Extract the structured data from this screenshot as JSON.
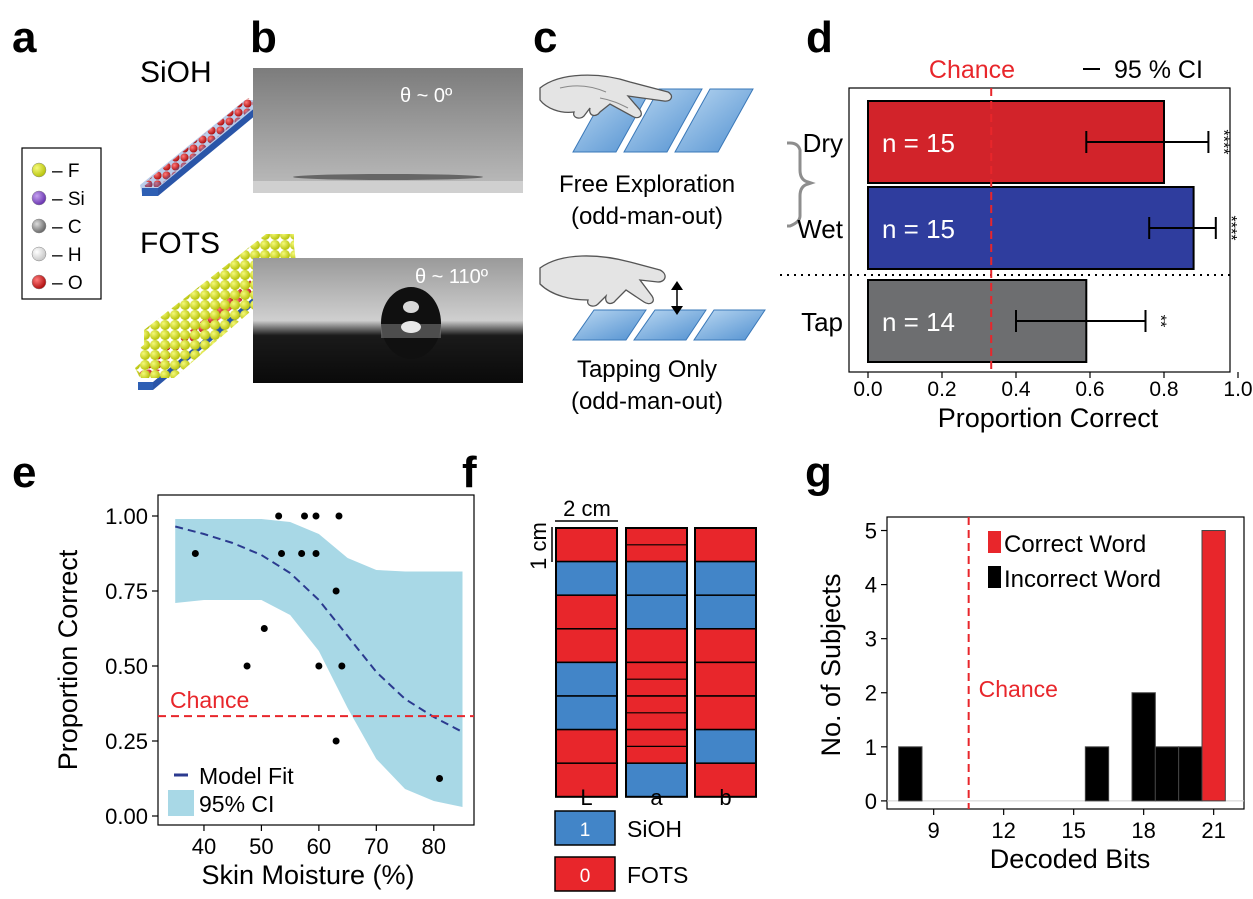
{
  "panels": {
    "a": "a",
    "b": "b",
    "c": "c",
    "d": "d",
    "e": "e",
    "f": "f",
    "g": "g"
  },
  "panel_a": {
    "top_label": "SiOH",
    "bottom_label": "FOTS",
    "legend": [
      {
        "label": "– F",
        "color": "#d8e21a"
      },
      {
        "label": "– Si",
        "color": "#8a55c8"
      },
      {
        "label": "– C",
        "color": "#9a9a9a"
      },
      {
        "label": "– H",
        "color": "#f2f2f2"
      },
      {
        "label": "– O",
        "color": "#e02020"
      }
    ]
  },
  "panel_b": {
    "top_angle": "θ ~ 0º",
    "bottom_angle": "θ ~ 110º"
  },
  "panel_c": {
    "free_line1": "Free Exploration",
    "free_line2": "(odd-man-out)",
    "tap_line1": "Tapping Only",
    "tap_line2": "(odd-man-out)"
  },
  "colors": {
    "red": "#e8262b",
    "blue": "#4285c8",
    "fill_red": "#d2232a",
    "fill_blue": "#2f3d9e",
    "fill_gray": "#6d6e70",
    "ci_fill": "#a8d8e6",
    "model": "#2b3a8f"
  },
  "chart_data": [
    {
      "id": "d",
      "type": "bar",
      "orientation": "horizontal",
      "categories": [
        "Dry",
        "Wet",
        "Tap"
      ],
      "values": [
        0.8,
        0.88,
        0.59
      ],
      "ci": [
        [
          0.59,
          0.92
        ],
        [
          0.76,
          0.94
        ],
        [
          0.4,
          0.75
        ]
      ],
      "bar_labels": [
        "n = 15",
        "n = 15",
        "n = 14"
      ],
      "significance": [
        "****",
        "****",
        "**"
      ],
      "xlabel": "Proportion Correct",
      "xlim": [
        0,
        1
      ],
      "xticks": [
        "0.0",
        "0.2",
        "0.4",
        "0.6",
        "0.8",
        "1.0"
      ],
      "chance_value": 0.333,
      "chance_label": "Chance",
      "legend": "95 % CI"
    },
    {
      "id": "e",
      "type": "scatter",
      "xlabel": "Skin Moisture (%)",
      "ylabel": "Proportion Correct",
      "xlim": [
        32,
        87
      ],
      "ylim": [
        -0.03,
        1.07
      ],
      "xticks": [
        "40",
        "50",
        "60",
        "70",
        "80"
      ],
      "yticks": [
        "0.00",
        "0.25",
        "0.50",
        "0.75",
        "1.00"
      ],
      "points": [
        [
          38.5,
          0.875
        ],
        [
          47.5,
          0.5
        ],
        [
          50.5,
          0.625
        ],
        [
          53,
          1.0
        ],
        [
          53.5,
          0.875
        ],
        [
          57,
          0.875
        ],
        [
          57.5,
          1.0
        ],
        [
          59.5,
          0.875
        ],
        [
          59.5,
          1.0
        ],
        [
          60,
          0.5
        ],
        [
          63,
          0.75
        ],
        [
          63,
          0.25
        ],
        [
          63.5,
          1.0
        ],
        [
          64,
          0.5
        ],
        [
          81,
          0.125
        ]
      ],
      "model_fit": [
        [
          35,
          0.965
        ],
        [
          40,
          0.94
        ],
        [
          45,
          0.91
        ],
        [
          50,
          0.87
        ],
        [
          55,
          0.81
        ],
        [
          60,
          0.72
        ],
        [
          65,
          0.6
        ],
        [
          70,
          0.48
        ],
        [
          75,
          0.39
        ],
        [
          80,
          0.33
        ],
        [
          85,
          0.28
        ]
      ],
      "ci_upper": [
        [
          35,
          0.99
        ],
        [
          40,
          0.99
        ],
        [
          45,
          0.99
        ],
        [
          50,
          0.99
        ],
        [
          55,
          0.98
        ],
        [
          60,
          0.94
        ],
        [
          65,
          0.86
        ],
        [
          70,
          0.82
        ],
        [
          75,
          0.815
        ],
        [
          80,
          0.815
        ],
        [
          85,
          0.815
        ]
      ],
      "ci_lower": [
        [
          35,
          0.71
        ],
        [
          40,
          0.72
        ],
        [
          45,
          0.72
        ],
        [
          50,
          0.72
        ],
        [
          55,
          0.67
        ],
        [
          60,
          0.55
        ],
        [
          65,
          0.36
        ],
        [
          70,
          0.19
        ],
        [
          75,
          0.09
        ],
        [
          80,
          0.05
        ],
        [
          85,
          0.03
        ]
      ],
      "chance_value": 0.333,
      "chance_label": "Chance",
      "legend": [
        "Model Fit",
        "95% CI"
      ]
    },
    {
      "id": "f",
      "type": "table",
      "scale_x": "2 cm",
      "scale_y": "1 cm",
      "columns": [
        "L",
        "a",
        "b"
      ],
      "cells": [
        [
          0,
          0,
          0
        ],
        [
          1,
          1,
          1
        ],
        [
          0,
          1,
          1
        ],
        [
          0,
          0,
          0
        ],
        [
          1,
          0,
          0
        ],
        [
          1,
          0,
          0
        ],
        [
          0,
          0,
          1
        ],
        [
          0,
          1,
          0
        ]
      ],
      "extra_lines": [
        [
          false,
          true,
          false
        ],
        [
          false,
          false,
          false
        ],
        [
          false,
          false,
          false
        ],
        [
          false,
          false,
          false
        ],
        [
          false,
          true,
          false
        ],
        [
          false,
          true,
          false
        ],
        [
          false,
          true,
          false
        ],
        [
          false,
          false,
          false
        ]
      ],
      "key": [
        {
          "value": "1",
          "label": "SiOH"
        },
        {
          "value": "0",
          "label": "FOTS"
        }
      ]
    },
    {
      "id": "g",
      "type": "bar",
      "xlabel": "Decoded Bits",
      "ylabel": "No. of Subjects",
      "xlim": [
        7,
        22.3
      ],
      "ylim": [
        -0.15,
        5.25
      ],
      "xticks": [
        "9",
        "12",
        "15",
        "18",
        "21"
      ],
      "yticks": [
        "0",
        "1",
        "2",
        "3",
        "4",
        "5"
      ],
      "bins": [
        {
          "start": 7.5,
          "end": 8.5,
          "count": 1,
          "series": "Incorrect Word"
        },
        {
          "start": 15.5,
          "end": 16.5,
          "count": 1,
          "series": "Incorrect Word"
        },
        {
          "start": 17.5,
          "end": 18.5,
          "count": 2,
          "series": "Incorrect Word"
        },
        {
          "start": 18.5,
          "end": 19.5,
          "count": 1,
          "series": "Incorrect Word"
        },
        {
          "start": 19.5,
          "end": 20.5,
          "count": 1,
          "series": "Incorrect Word"
        },
        {
          "start": 20.5,
          "end": 21.5,
          "count": 5,
          "series": "Correct Word"
        }
      ],
      "chance_value": 10.5,
      "chance_label": "Chance",
      "legend": [
        "Correct Word",
        "Incorrect Word"
      ]
    }
  ]
}
